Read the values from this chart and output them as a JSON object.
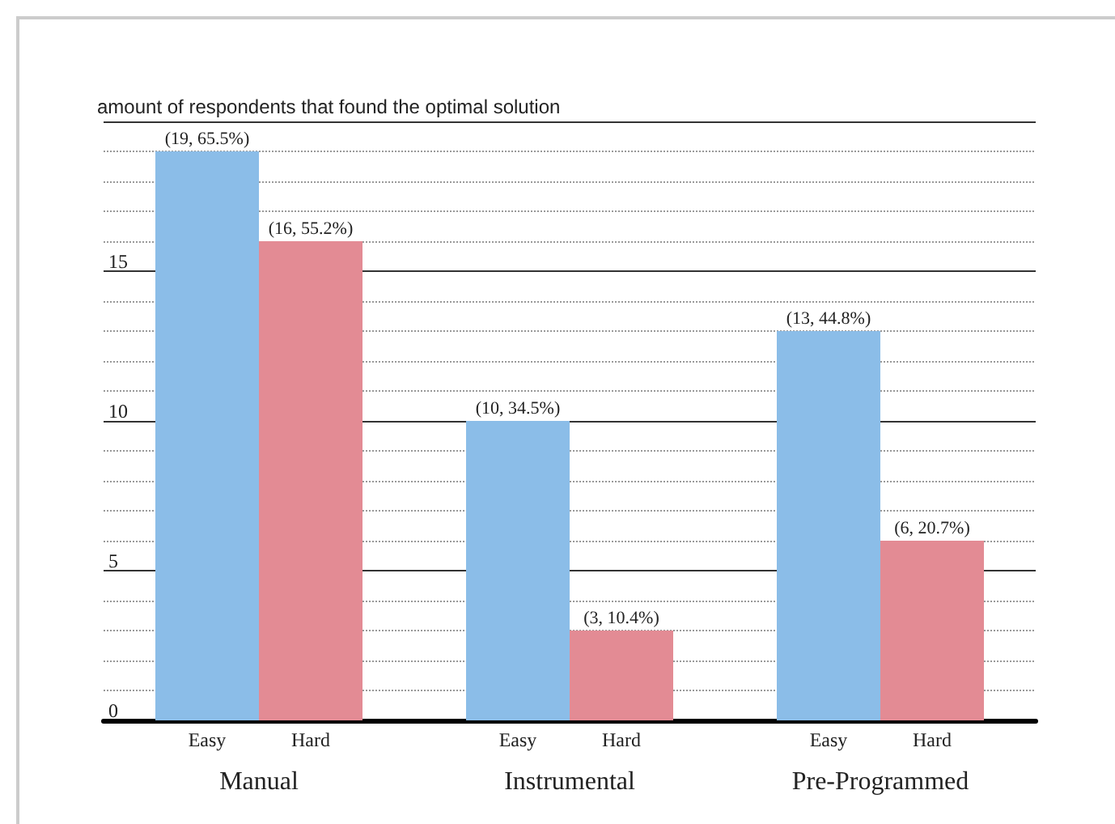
{
  "chart_data": {
    "type": "bar",
    "ylabel": "amount of respondents that found the optimal solution",
    "categories": [
      "Manual",
      "Instrumental",
      "Pre-Programmed"
    ],
    "series": [
      {
        "name": "Easy",
        "color": "#8bbde8",
        "values": [
          19,
          10,
          13
        ],
        "value_labels": [
          "(19, 65.5%)",
          "(10, 34.5%)",
          "(13, 44.8%)"
        ]
      },
      {
        "name": "Hard",
        "color": "#e38b94",
        "values": [
          16,
          3,
          6
        ],
        "value_labels": [
          "(16, 55.2%)",
          "(3, 10.4%)",
          "(6, 20.7%)"
        ]
      }
    ],
    "ylim": [
      0,
      20
    ],
    "yticks": [
      0,
      5,
      10,
      15
    ],
    "grid": "y",
    "legend": false
  }
}
